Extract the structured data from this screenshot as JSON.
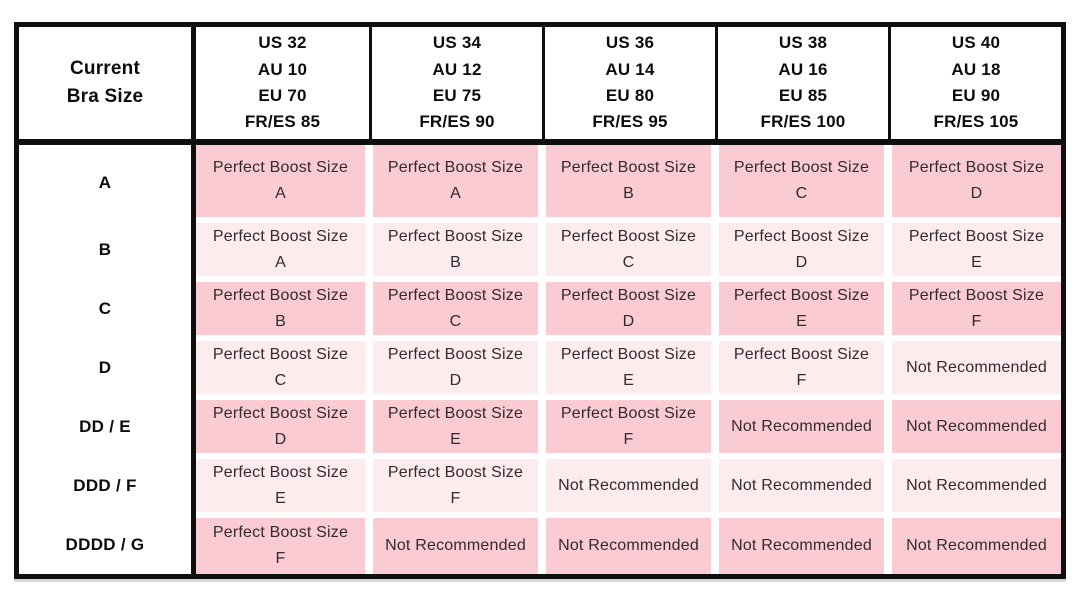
{
  "table": {
    "corner": {
      "line1": "Current",
      "line2": "Bra Size"
    },
    "column_headers": [
      [
        "US 32",
        "AU 10",
        "EU 70",
        "FR/ES 85"
      ],
      [
        "US 34",
        "AU 12",
        "EU 75",
        "FR/ES 90"
      ],
      [
        "US 36",
        "AU 14",
        "EU 80",
        "FR/ES 95"
      ],
      [
        "US 38",
        "AU 16",
        "EU 85",
        "FR/ES 100"
      ],
      [
        "US 40",
        "AU 18",
        "EU 90",
        "FR/ES 105"
      ]
    ],
    "rows": [
      {
        "label": "A",
        "shade": "dark",
        "cells": [
          [
            "Perfect Boost Size",
            "A"
          ],
          [
            "Perfect Boost Size",
            "A"
          ],
          [
            "Perfect Boost Size",
            "B"
          ],
          [
            "Perfect Boost Size",
            "C"
          ],
          [
            "Perfect Boost Size",
            "D"
          ]
        ]
      },
      {
        "label": "B",
        "shade": "light",
        "cells": [
          [
            "Perfect Boost Size",
            "A"
          ],
          [
            "Perfect Boost Size",
            "B"
          ],
          [
            "Perfect Boost Size",
            "C"
          ],
          [
            "Perfect Boost Size",
            "D"
          ],
          [
            "Perfect Boost Size",
            "E"
          ]
        ]
      },
      {
        "label": "C",
        "shade": "dark",
        "cells": [
          [
            "Perfect Boost Size",
            "B"
          ],
          [
            "Perfect Boost Size",
            "C"
          ],
          [
            "Perfect Boost Size",
            "D"
          ],
          [
            "Perfect Boost Size",
            "E"
          ],
          [
            "Perfect Boost Size",
            "F"
          ]
        ]
      },
      {
        "label": "D",
        "shade": "light",
        "cells": [
          [
            "Perfect Boost Size",
            "C"
          ],
          [
            "Perfect Boost Size",
            "D"
          ],
          [
            "Perfect Boost Size",
            "E"
          ],
          [
            "Perfect Boost Size",
            "F"
          ],
          [
            "Not Recommended"
          ]
        ]
      },
      {
        "label": "DD / E",
        "shade": "dark",
        "cells": [
          [
            "Perfect Boost Size",
            "D"
          ],
          [
            "Perfect Boost Size",
            "E"
          ],
          [
            "Perfect Boost Size",
            "F"
          ],
          [
            "Not Recommended"
          ],
          [
            "Not Recommended"
          ]
        ]
      },
      {
        "label": "DDD / F",
        "shade": "light",
        "cells": [
          [
            "Perfect Boost Size",
            "E"
          ],
          [
            "Perfect Boost Size",
            "F"
          ],
          [
            "Not Recommended"
          ],
          [
            "Not Recommended"
          ],
          [
            "Not Recommended"
          ]
        ]
      },
      {
        "label": "DDDD / G",
        "shade": "dark",
        "cells": [
          [
            "Perfect Boost Size",
            "F"
          ],
          [
            "Not Recommended"
          ],
          [
            "Not Recommended"
          ],
          [
            "Not Recommended"
          ],
          [
            "Not Recommended"
          ]
        ]
      }
    ],
    "colors": {
      "dark_pink": "#facbd3",
      "light_pink": "#fdecee",
      "border_black": "#0f0f0f",
      "header_text": "#0c0c0c",
      "cell_text": "#322a2d"
    }
  },
  "chart_data": {
    "type": "table",
    "title": "",
    "row_header_label": "Current Bra Size",
    "column_labels": [
      "US 32 / AU 10 / EU 70 / FR/ES 85",
      "US 34 / AU 12 / EU 75 / FR/ES 90",
      "US 36 / AU 14 / EU 80 / FR/ES 95",
      "US 38 / AU 16 / EU 85 / FR/ES 100",
      "US 40 / AU 18 / EU 90 / FR/ES 105"
    ],
    "row_labels": [
      "A",
      "B",
      "C",
      "D",
      "DD / E",
      "DDD / F",
      "DDDD / G"
    ],
    "values": [
      [
        "Perfect Boost Size A",
        "Perfect Boost Size A",
        "Perfect Boost Size B",
        "Perfect Boost Size C",
        "Perfect Boost Size D"
      ],
      [
        "Perfect Boost Size A",
        "Perfect Boost Size B",
        "Perfect Boost Size C",
        "Perfect Boost Size D",
        "Perfect Boost Size E"
      ],
      [
        "Perfect Boost Size B",
        "Perfect Boost Size C",
        "Perfect Boost Size D",
        "Perfect Boost Size E",
        "Perfect Boost Size F"
      ],
      [
        "Perfect Boost Size C",
        "Perfect Boost Size D",
        "Perfect Boost Size E",
        "Perfect Boost Size F",
        "Not Recommended"
      ],
      [
        "Perfect Boost Size D",
        "Perfect Boost Size E",
        "Perfect Boost Size F",
        "Not Recommended",
        "Not Recommended"
      ],
      [
        "Perfect Boost Size E",
        "Perfect Boost Size F",
        "Not Recommended",
        "Not Recommended",
        "Not Recommended"
      ],
      [
        "Perfect Boost Size F",
        "Not Recommended",
        "Not Recommended",
        "Not Recommended",
        "Not Recommended"
      ]
    ],
    "layout_hints": {
      "grid": "row shading alternates dark/light pink starting dark",
      "legend": "none",
      "header_row": "bold black text on white",
      "borders": "thick black outer border, thick dividers after header row and first column, thin dividers between column headers, white gutters between pink cells"
    }
  }
}
